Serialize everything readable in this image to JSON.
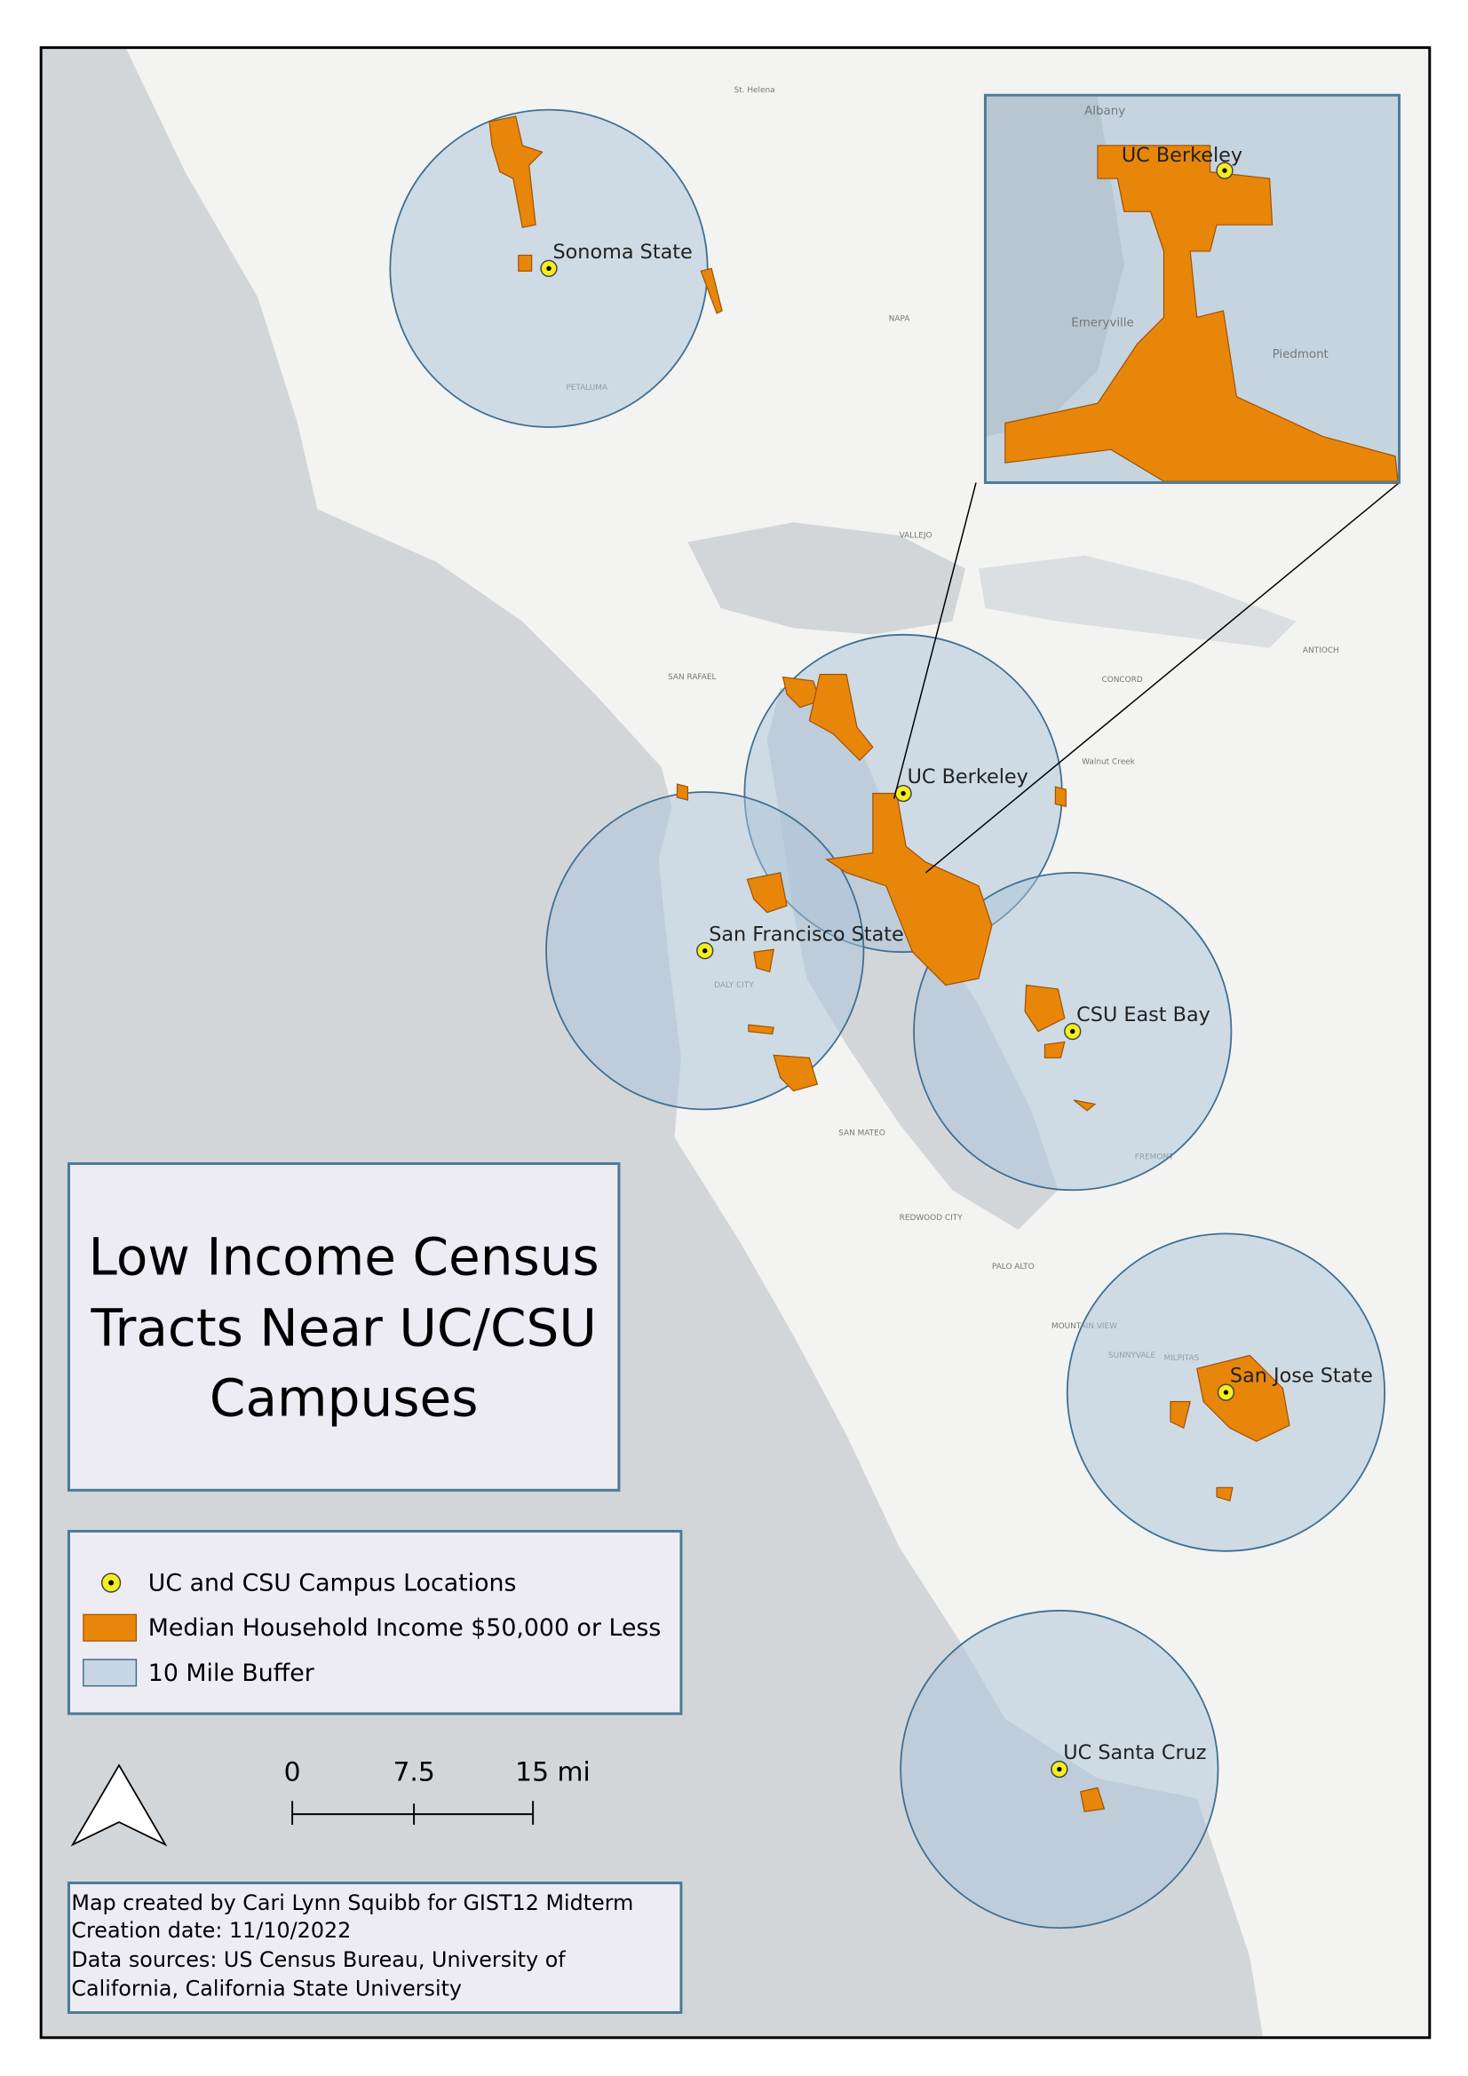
{
  "title_lines": [
    "Low Income Census",
    "Tracts Near UC/CSU",
    "Campuses"
  ],
  "campuses": [
    "Sonoma State",
    "UC Berkeley",
    "San Francisco State",
    "CSU East Bay",
    "San Jose State",
    "UC Santa Cruz"
  ],
  "inset": {
    "campus": "UC Berkeley",
    "places": [
      "Albany",
      "Emeryville",
      "Piedmont"
    ]
  },
  "legend": [
    "UC and CSU Campus Locations",
    "Median Household Income $50,000 or Less",
    "10 Mile Buffer"
  ],
  "scale_bar": [
    "0",
    "7.5",
    "15 mi"
  ],
  "credits": [
    "Map created by Cari Lynn Squibb for GIST12 Midterm",
    "Creation date: 11/10/2022",
    "Data sources: US Census Bureau, University of",
    "California, California State University"
  ],
  "places": [
    "St. Helena",
    "NAPA",
    "PETALUMA",
    "VALLEJO",
    "SAN RAFAEL",
    "CONCORD",
    "ANTIOCH",
    "Walnut Creek",
    "DALY CITY",
    "SAN MATEO",
    "REDWOOD CITY",
    "PALO ALTO",
    "MOUNTAIN VIEW",
    "MILPITAS",
    "FREMONT",
    "SUNNYVALE"
  ]
}
